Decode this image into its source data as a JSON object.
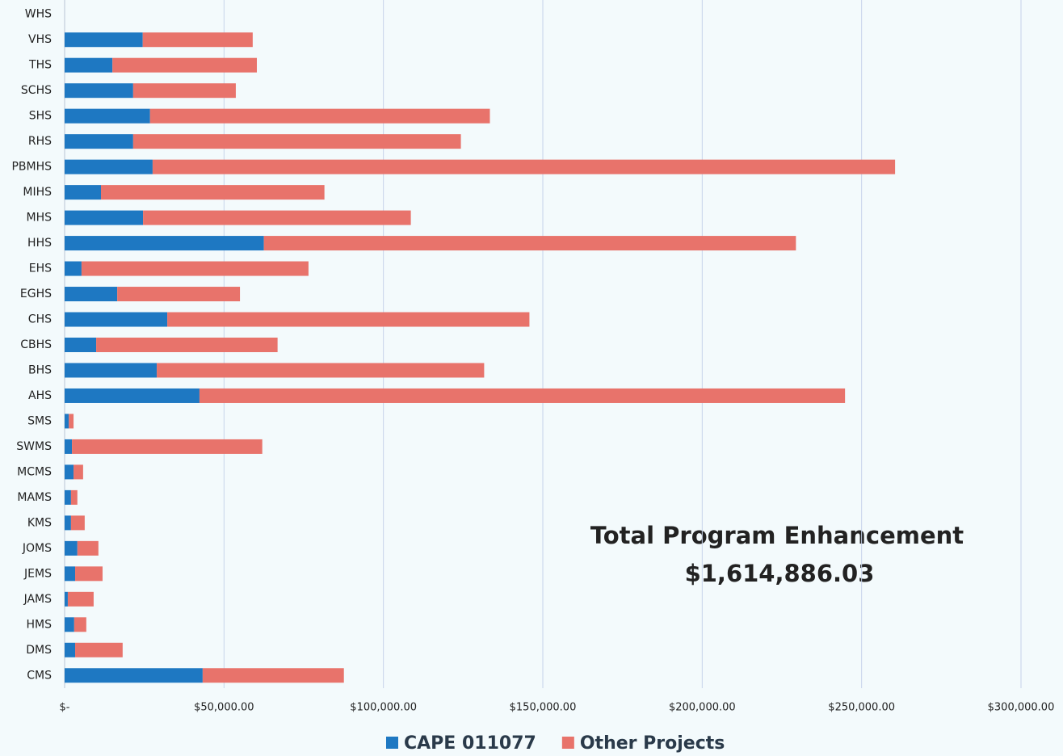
{
  "chart_data": {
    "type": "stacked-barh",
    "categories": [
      "WHS",
      "VHS",
      "THS",
      "SCHS",
      "SHS",
      "RHS",
      "PBMHS",
      "MIHS",
      "MHS",
      "HHS",
      "EHS",
      "EGHS",
      "CHS",
      "CBHS",
      "BHS",
      "AHS",
      "SMS",
      "SWMS",
      "MCMS",
      "MAMS",
      "KMS",
      "JOMS",
      "JEMS",
      "JAMS",
      "HMS",
      "DMS",
      "CMS"
    ],
    "series": [
      {
        "name": "CAPE 011077",
        "color": "#1e78c2",
        "values": [
          0,
          24500,
          15000,
          21500,
          26800,
          21500,
          27600,
          11400,
          24600,
          62500,
          5300,
          16500,
          32200,
          9900,
          28900,
          42300,
          1300,
          2300,
          2800,
          2000,
          2000,
          4000,
          3300,
          1000,
          3000,
          3300,
          43300
        ]
      },
      {
        "name": "Other Projects",
        "color": "#e8736b",
        "values": [
          0,
          34500,
          45300,
          32200,
          106600,
          102800,
          232900,
          70100,
          84000,
          166900,
          71200,
          38500,
          113600,
          56900,
          102700,
          202500,
          1500,
          59700,
          3000,
          2000,
          4300,
          6600,
          8600,
          8100,
          3800,
          14900,
          44300
        ]
      }
    ],
    "xlim": [
      0,
      300000
    ],
    "xticks": [
      {
        "value": 0,
        "label": "$-"
      },
      {
        "value": 50000,
        "label": "$50,000.00"
      },
      {
        "value": 100000,
        "label": "$100,000.00"
      },
      {
        "value": 150000,
        "label": "$150,000.00"
      },
      {
        "value": 200000,
        "label": "$200,000.00"
      },
      {
        "value": 250000,
        "label": "$250,000.00"
      },
      {
        "value": 300000,
        "label": "$300,000.00"
      }
    ],
    "grid": true,
    "annotations": [
      "Total Program Enhancement",
      "$1,614,886.03"
    ],
    "legend": "bottom"
  }
}
